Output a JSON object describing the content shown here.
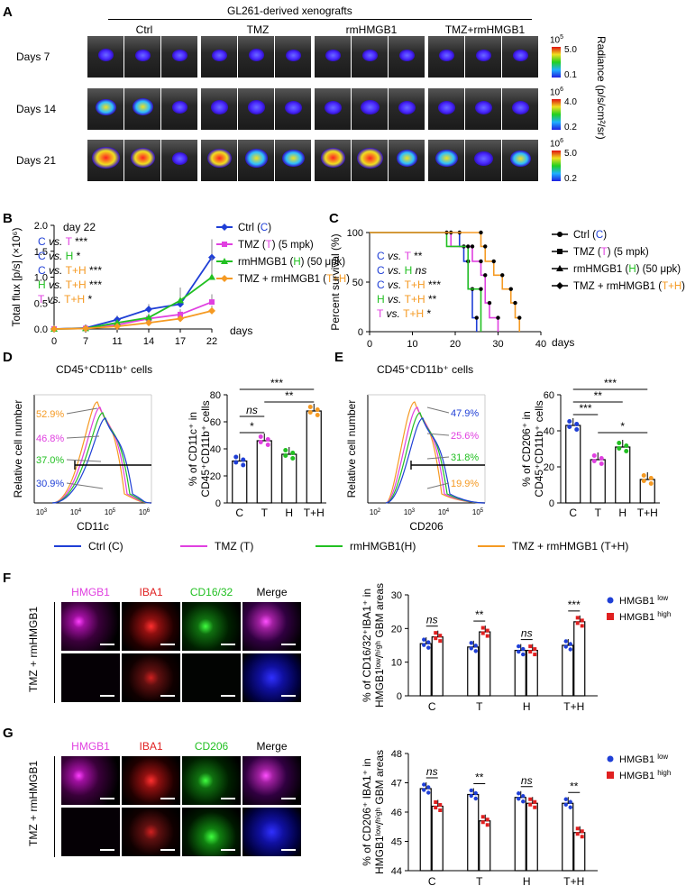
{
  "panelA": {
    "label": "A",
    "title": "GL261-derived xenografts",
    "groups": [
      "Ctrl",
      "TMZ",
      "rmHMGB1",
      "TMZ+rmHMGB1"
    ],
    "rows": [
      {
        "label": "Days 7",
        "scale_exp": "10",
        "scale_sup": "5",
        "scale_max": "5.0",
        "scale_min": "0.1"
      },
      {
        "label": "Days 14",
        "scale_exp": "10",
        "scale_sup": "6",
        "scale_max": "4.0",
        "scale_min": "0.2"
      },
      {
        "label": "Days 21",
        "scale_exp": "10",
        "scale_sup": "6",
        "scale_max": "5.0",
        "scale_min": "0.2"
      }
    ],
    "radiance_label": "Radiance (p/s/cm²/sr)",
    "tumor_intensity": [
      [
        0.35,
        0.3,
        0.3,
        0.3,
        0.35,
        0.3,
        0.3,
        0.3,
        0.3,
        0.3,
        0.3,
        0.3
      ],
      [
        0.55,
        0.6,
        0.35,
        0.45,
        0.45,
        0.4,
        0.4,
        0.5,
        0.4,
        0.4,
        0.4,
        0.4
      ],
      [
        0.95,
        0.8,
        0.35,
        0.75,
        0.7,
        0.65,
        0.8,
        0.85,
        0.6,
        0.65,
        0.5,
        0.55
      ]
    ]
  },
  "panelB": {
    "label": "B",
    "ylabel": "Total flux [p/s] (×10⁶)",
    "xlabel": "days",
    "annot_title": "day 22",
    "annots": [
      {
        "a": "C",
        "b": "T",
        "stars": "***"
      },
      {
        "a": "C",
        "b": "H",
        "stars": "*"
      },
      {
        "a": "C",
        "b": "T+H",
        "stars": "***"
      },
      {
        "a": "H",
        "b": "T+H",
        "stars": "***"
      },
      {
        "a": "T",
        "b": "T+H",
        "stars": "*"
      }
    ],
    "vs": "vs.",
    "legend": [
      {
        "name": "Ctrl",
        "abbr": "C",
        "note": "",
        "color": "#1f3fd6"
      },
      {
        "name": "TMZ",
        "abbr": "T",
        "note": "(5 mpk)",
        "color": "#e040e0"
      },
      {
        "name": "rmHMGB1",
        "abbr": "H",
        "note": "(50 μpk)",
        "color": "#22c022"
      },
      {
        "name": "TMZ + rmHMGB1",
        "abbr": "T+H",
        "note": "",
        "color": "#f59a23"
      }
    ]
  },
  "panelC": {
    "label": "C",
    "ylabel": "Percent survival (%)",
    "xlabel": "days",
    "annots": [
      {
        "a": "C",
        "b": "T",
        "stars": "**"
      },
      {
        "a": "C",
        "b": "H",
        "stars": "ns"
      },
      {
        "a": "C",
        "b": "T+H",
        "stars": "***"
      },
      {
        "a": "H",
        "b": "T+H",
        "stars": "**"
      },
      {
        "a": "T",
        "b": "T+H",
        "stars": "*"
      }
    ]
  },
  "panelD": {
    "label": "D",
    "title": "CD45⁺CD11b⁺ cells",
    "hist_ylabel": "Relative cell number",
    "hist_xlabel": "CD11c",
    "pcts": [
      "52.9%",
      "46.8%",
      "37.0%",
      "30.9%"
    ],
    "bar_ylabel": "% of CD11c⁺ in CD45⁺CD11b⁺ cells",
    "sig": [
      "***",
      "**",
      "ns",
      "*"
    ]
  },
  "panelE": {
    "label": "E",
    "title": "CD45⁺CD11b⁺ cells",
    "hist_ylabel": "Relative cell number",
    "hist_xlabel": "CD206",
    "pcts": [
      "47.9%",
      "25.6%",
      "31.8%",
      "19.9%"
    ],
    "bar_ylabel": "% of CD206⁺ in CD45⁺CD11b⁺ cells",
    "sig": [
      "***",
      "**",
      "***",
      "*"
    ]
  },
  "legendDE": [
    {
      "label": "Ctrl (C)",
      "color": "#1f3fd6"
    },
    {
      "label": "TMZ (T)",
      "color": "#e040e0"
    },
    {
      "label": "rmHMGB1(H)",
      "color": "#22c022"
    },
    {
      "label": "TMZ + rmHMGB1 (T+H)",
      "color": "#f59a23"
    }
  ],
  "panelF": {
    "label": "F",
    "side": "TMZ + rmHMGB1",
    "channels": [
      {
        "name": "HMGB1",
        "color": "#e040e0"
      },
      {
        "name": "IBA1",
        "color": "#e02020"
      },
      {
        "name": "CD16/32",
        "color": "#22c022"
      },
      {
        "name": "Merge",
        "color": "#000000"
      }
    ],
    "ylabel": "% of CD16/32⁺IBA1⁺ in HMGB1ˡᵒʷ/ʰⁱᵍʰ GBM areas",
    "legend_low": "HMGB1",
    "legend_high": "HMGB1",
    "sup_low": "low",
    "sup_high": "high",
    "sig": [
      "ns",
      "**",
      "ns",
      "***"
    ]
  },
  "panelG": {
    "label": "G",
    "side": "TMZ + rmHMGB1",
    "channels": [
      {
        "name": "HMGB1",
        "color": "#e040e0"
      },
      {
        "name": "IBA1",
        "color": "#e02020"
      },
      {
        "name": "CD206",
        "color": "#22c022"
      },
      {
        "name": "Merge",
        "color": "#000000"
      }
    ],
    "ylabel": "% of CD206⁺ IBA1⁺ in HMGB1ˡᵒʷ/ʰⁱᵍʰ GBM areas",
    "legend_low": "HMGB1",
    "legend_high": "HMGB1",
    "sup_low": "low",
    "sup_high": "high",
    "sig": [
      "ns",
      "**",
      "ns",
      "**"
    ]
  },
  "chart_data": [
    {
      "id": "B",
      "type": "line",
      "x": [
        0,
        7,
        11,
        14,
        17,
        22
      ],
      "xlabel": "days",
      "ylabel": "Total flux [p/s] (×10⁶)",
      "ylim": [
        0,
        2.0
      ],
      "yticks": [
        0,
        0.5,
        1.0,
        1.5,
        2.0
      ],
      "series": [
        {
          "name": "Ctrl (C)",
          "values": [
            0,
            0.02,
            0.18,
            0.38,
            0.48,
            1.38
          ],
          "err": [
            0,
            0.02,
            0.08,
            0.1,
            0.15,
            0.35
          ]
        },
        {
          "name": "TMZ (T) (5 mpk)",
          "values": [
            0,
            0.01,
            0.08,
            0.2,
            0.28,
            0.52
          ],
          "err": [
            0,
            0.01,
            0.04,
            0.06,
            0.1,
            0.15
          ]
        },
        {
          "name": "rmHMGB1 (H) (50 μpk)",
          "values": [
            0,
            0.01,
            0.12,
            0.22,
            0.55,
            1.0
          ],
          "err": [
            0,
            0.01,
            0.05,
            0.08,
            0.25,
            0.38
          ]
        },
        {
          "name": "TMZ + rmHMGB1 (T+H)",
          "values": [
            0,
            0.01,
            0.05,
            0.12,
            0.2,
            0.35
          ],
          "err": [
            0,
            0.01,
            0.02,
            0.04,
            0.06,
            0.1
          ]
        }
      ]
    },
    {
      "id": "C",
      "type": "line",
      "xlabel": "days",
      "ylabel": "Percent survival (%)",
      "xlim": [
        0,
        40
      ],
      "ylim": [
        0,
        100
      ],
      "xticks": [
        0,
        10,
        20,
        30,
        40
      ],
      "yticks": [
        0,
        50,
        100
      ],
      "series": [
        {
          "name": "Ctrl (C)",
          "steps": [
            [
              0,
              100
            ],
            [
              21,
              100
            ],
            [
              21,
              86
            ],
            [
              22,
              86
            ],
            [
              22,
              71
            ],
            [
              23,
              71
            ],
            [
              23,
              43
            ],
            [
              24,
              43
            ],
            [
              24,
              14
            ],
            [
              25,
              14
            ],
            [
              25,
              0
            ]
          ]
        },
        {
          "name": "TMZ (T) (5 mpk)",
          "steps": [
            [
              0,
              100
            ],
            [
              19,
              100
            ],
            [
              19,
              86
            ],
            [
              24,
              86
            ],
            [
              24,
              71
            ],
            [
              26,
              71
            ],
            [
              26,
              57
            ],
            [
              27,
              57
            ],
            [
              27,
              29
            ],
            [
              28,
              29
            ],
            [
              28,
              14
            ],
            [
              30,
              14
            ],
            [
              30,
              0
            ]
          ]
        },
        {
          "name": "rmHMGB1 (H) (50 μpk)",
          "steps": [
            [
              0,
              100
            ],
            [
              18,
              100
            ],
            [
              18,
              86
            ],
            [
              23,
              86
            ],
            [
              23,
              43
            ],
            [
              26,
              43
            ],
            [
              26,
              0
            ]
          ]
        },
        {
          "name": "TMZ + rmHMGB1 (T+H)",
          "steps": [
            [
              0,
              100
            ],
            [
              26,
              100
            ],
            [
              26,
              86
            ],
            [
              27,
              86
            ],
            [
              27,
              71
            ],
            [
              29,
              71
            ],
            [
              29,
              57
            ],
            [
              31,
              57
            ],
            [
              31,
              43
            ],
            [
              33,
              43
            ],
            [
              33,
              29
            ],
            [
              34,
              29
            ],
            [
              34,
              14
            ],
            [
              35,
              14
            ],
            [
              35,
              0
            ]
          ]
        }
      ]
    },
    {
      "id": "D",
      "type": "bar",
      "categories": [
        "C",
        "T",
        "H",
        "T+H"
      ],
      "values": [
        31,
        46,
        36,
        68
      ],
      "ylim": [
        0,
        80
      ],
      "yticks": [
        0,
        20,
        40,
        60,
        80
      ],
      "ylabel": "% of CD11c⁺ in CD45⁺CD11b⁺ cells"
    },
    {
      "id": "E",
      "type": "bar",
      "categories": [
        "C",
        "T",
        "H",
        "T+H"
      ],
      "values": [
        43,
        24,
        31,
        13
      ],
      "ylim": [
        0,
        60
      ],
      "yticks": [
        0,
        20,
        40,
        60
      ],
      "ylabel": "% of CD206⁺ in CD45⁺CD11b⁺ cells"
    },
    {
      "id": "F",
      "type": "bar",
      "categories": [
        "C",
        "T",
        "H",
        "T+H"
      ],
      "ylim": [
        0,
        30
      ],
      "yticks": [
        0,
        10,
        20,
        30
      ],
      "series": [
        {
          "name": "HMGB1 low",
          "values": [
            15.5,
            14.5,
            13.5,
            15
          ]
        },
        {
          "name": "HMGB1 high",
          "values": [
            17.5,
            19,
            13.5,
            22
          ]
        }
      ]
    },
    {
      "id": "G",
      "type": "bar",
      "categories": [
        "C",
        "T",
        "H",
        "T+H"
      ],
      "ylim": [
        44,
        48
      ],
      "yticks": [
        44,
        45,
        46,
        47,
        48
      ],
      "series": [
        {
          "name": "HMGB1 low",
          "values": [
            46.8,
            46.6,
            46.5,
            46.3
          ]
        },
        {
          "name": "HMGB1 high",
          "values": [
            46.2,
            45.7,
            46.3,
            45.3
          ]
        }
      ]
    }
  ]
}
